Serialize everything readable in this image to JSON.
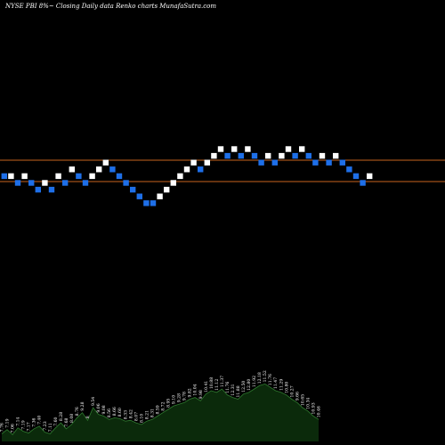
{
  "header": {
    "title": "NYSE PBI 8%~  Closing Daily data  Renko  charts MunafaSutra.com"
  },
  "colors": {
    "background": "#000000",
    "brick_up": "#ffffff",
    "brick_down": "#1e6fe8",
    "reference_line": "#c8641e",
    "volume_fill": "#0b2a0b",
    "volume_outline": "#2f7a2f"
  },
  "chart_data": {
    "type": "renko",
    "title": "NYSE PBI 8%~  Closing Daily data  Renko  charts MunafaSutra.com",
    "reference_levels": [
      9.2,
      8.5
    ],
    "bricks": [
      {
        "i": 0,
        "level": 4,
        "dir": "down"
      },
      {
        "i": 1,
        "level": 4,
        "dir": "up"
      },
      {
        "i": 2,
        "level": 3,
        "dir": "down"
      },
      {
        "i": 3,
        "level": 4,
        "dir": "up"
      },
      {
        "i": 4,
        "level": 3,
        "dir": "down"
      },
      {
        "i": 5,
        "level": 2,
        "dir": "down"
      },
      {
        "i": 6,
        "level": 3,
        "dir": "up"
      },
      {
        "i": 7,
        "level": 2,
        "dir": "down"
      },
      {
        "i": 8,
        "level": 4,
        "dir": "up"
      },
      {
        "i": 9,
        "level": 3,
        "dir": "down"
      },
      {
        "i": 10,
        "level": 5,
        "dir": "up"
      },
      {
        "i": 11,
        "level": 4,
        "dir": "down"
      },
      {
        "i": 12,
        "level": 3,
        "dir": "down"
      },
      {
        "i": 13,
        "level": 4,
        "dir": "up"
      },
      {
        "i": 14,
        "level": 5,
        "dir": "up"
      },
      {
        "i": 15,
        "level": 6,
        "dir": "up"
      },
      {
        "i": 16,
        "level": 5,
        "dir": "down"
      },
      {
        "i": 17,
        "level": 4,
        "dir": "down"
      },
      {
        "i": 18,
        "level": 3,
        "dir": "down"
      },
      {
        "i": 19,
        "level": 2,
        "dir": "down"
      },
      {
        "i": 20,
        "level": 1,
        "dir": "down"
      },
      {
        "i": 21,
        "level": 0,
        "dir": "down"
      },
      {
        "i": 22,
        "level": 0,
        "dir": "down"
      },
      {
        "i": 23,
        "level": 1,
        "dir": "up"
      },
      {
        "i": 24,
        "level": 2,
        "dir": "up"
      },
      {
        "i": 25,
        "level": 3,
        "dir": "up"
      },
      {
        "i": 26,
        "level": 4,
        "dir": "up"
      },
      {
        "i": 27,
        "level": 5,
        "dir": "up"
      },
      {
        "i": 28,
        "level": 6,
        "dir": "up"
      },
      {
        "i": 29,
        "level": 5,
        "dir": "down"
      },
      {
        "i": 30,
        "level": 6,
        "dir": "up"
      },
      {
        "i": 31,
        "level": 7,
        "dir": "up"
      },
      {
        "i": 32,
        "level": 8,
        "dir": "up"
      },
      {
        "i": 33,
        "level": 7,
        "dir": "down"
      },
      {
        "i": 34,
        "level": 8,
        "dir": "up"
      },
      {
        "i": 35,
        "level": 7,
        "dir": "down"
      },
      {
        "i": 36,
        "level": 8,
        "dir": "up"
      },
      {
        "i": 37,
        "level": 7,
        "dir": "down"
      },
      {
        "i": 38,
        "level": 6,
        "dir": "down"
      },
      {
        "i": 39,
        "level": 7,
        "dir": "up"
      },
      {
        "i": 40,
        "level": 6,
        "dir": "down"
      },
      {
        "i": 41,
        "level": 7,
        "dir": "up"
      },
      {
        "i": 42,
        "level": 8,
        "dir": "up"
      },
      {
        "i": 43,
        "level": 7,
        "dir": "down"
      },
      {
        "i": 44,
        "level": 8,
        "dir": "up"
      },
      {
        "i": 45,
        "level": 7,
        "dir": "down"
      },
      {
        "i": 46,
        "level": 6,
        "dir": "down"
      },
      {
        "i": 47,
        "level": 7,
        "dir": "up"
      },
      {
        "i": 48,
        "level": 6,
        "dir": "down"
      },
      {
        "i": 49,
        "level": 7,
        "dir": "up"
      },
      {
        "i": 50,
        "level": 6,
        "dir": "down"
      },
      {
        "i": 51,
        "level": 5,
        "dir": "down"
      },
      {
        "i": 52,
        "level": 4,
        "dir": "down"
      },
      {
        "i": 53,
        "level": 3,
        "dir": "down"
      },
      {
        "i": 54,
        "level": 4,
        "dir": "up"
      }
    ],
    "volume_labels": [
      "7.76",
      "7.19",
      "7.06",
      "7.14",
      "7.19",
      "7.17",
      "7.36",
      "7.40",
      "7.23",
      "7.11",
      "7.60",
      "8.28",
      "7.68",
      "8.08",
      "8.76",
      "9.28",
      "8",
      "9.54",
      "9.06",
      "9.08",
      "8.56",
      "8.66",
      "8.60",
      "8.33",
      "8.42",
      "8.07",
      "8.10",
      "8.21",
      "8.31",
      "8.59",
      "8.72",
      "8.95",
      "9.10",
      "9.28",
      "9.78",
      "9.82",
      "10.04",
      "9.98",
      "10.41",
      "10.88",
      "11.12",
      "11.37",
      "11.76",
      "12.31",
      "11.88",
      "12.50",
      "12.80",
      "11.92",
      "12.18",
      "11.52",
      "11.76",
      "11.47",
      "11.29",
      "10.80",
      "10.27",
      "9.66",
      "10.65",
      "10.34",
      "10.93",
      "10.46"
    ],
    "volume": [
      9,
      14,
      8,
      16,
      12,
      10,
      15,
      18,
      11,
      9,
      16,
      22,
      15,
      20,
      28,
      34,
      25,
      40,
      32,
      30,
      26,
      28,
      27,
      24,
      25,
      22,
      20,
      24,
      26,
      30,
      34,
      38,
      42,
      44,
      46,
      50,
      52,
      48,
      56,
      60,
      58,
      62,
      55,
      52,
      50,
      56,
      58,
      62,
      66,
      68,
      64,
      60,
      58,
      55,
      50,
      46,
      40,
      36,
      30,
      26
    ]
  }
}
